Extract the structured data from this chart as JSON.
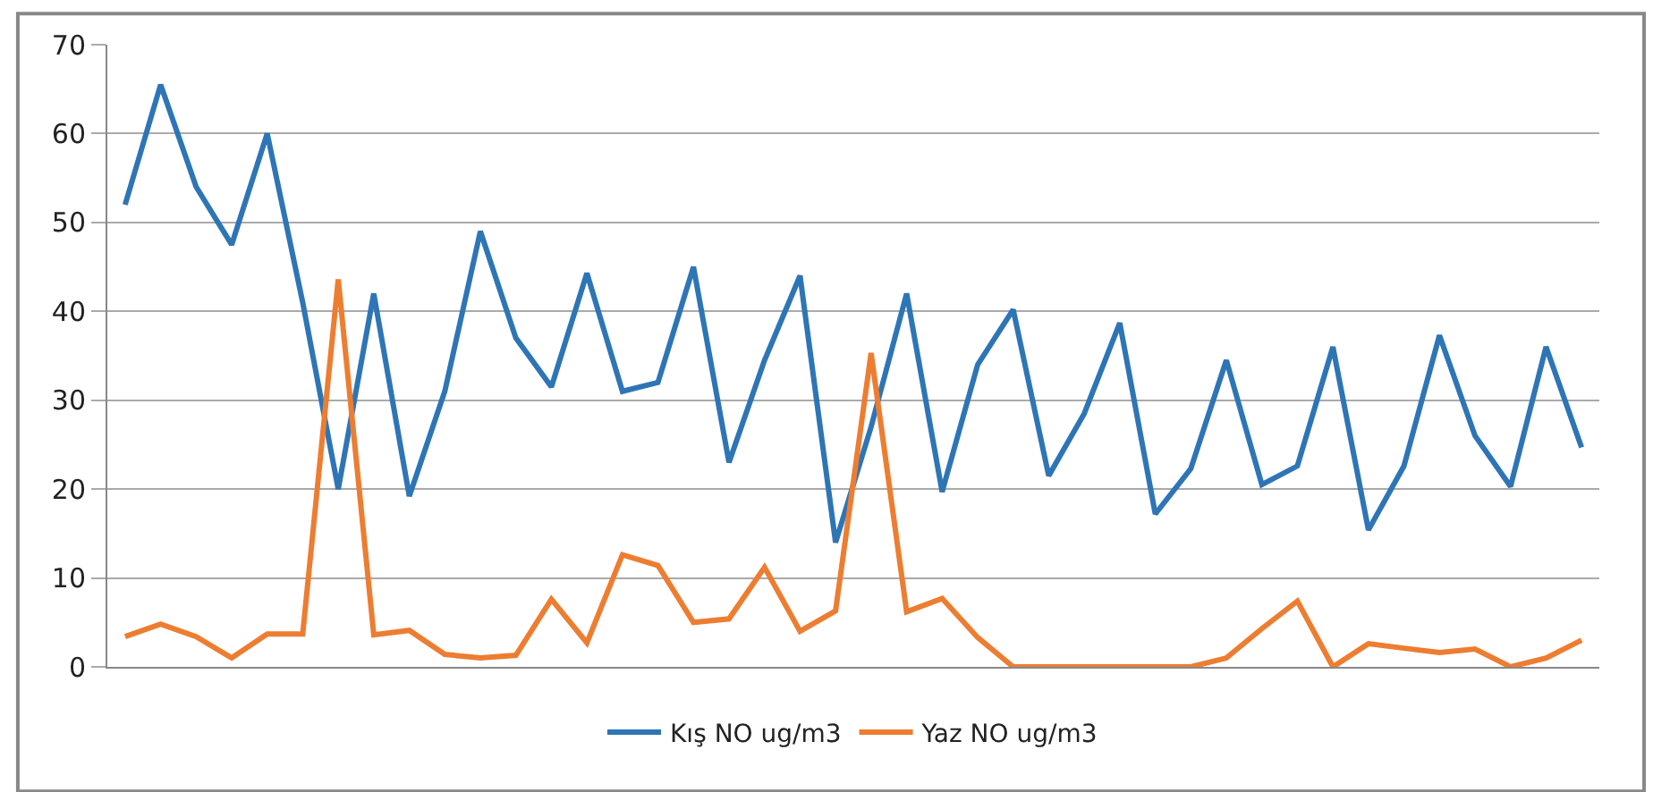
{
  "chart_data": {
    "type": "line",
    "categories": [
      null,
      null,
      null,
      null,
      null,
      null,
      null,
      null,
      null,
      null,
      null,
      null,
      null,
      null,
      null,
      null,
      null,
      null,
      null,
      null,
      null,
      null,
      null,
      null,
      null,
      null,
      null,
      null,
      null,
      null,
      null,
      null,
      null,
      null,
      null,
      null,
      null,
      null,
      null,
      null,
      null,
      null
    ],
    "series": [
      {
        "name": "Kış NO ug/m3",
        "color": "#2e75b6",
        "values": [
          52,
          65.5,
          54,
          47.5,
          60,
          41,
          20,
          42,
          19.2,
          31,
          49,
          37,
          31.5,
          44.3,
          31,
          32,
          45,
          23,
          34.5,
          44,
          14,
          27,
          42,
          19.7,
          34,
          40.2,
          21.5,
          28.5,
          38.7,
          17.2,
          22.3,
          34.5,
          20.5,
          22.6,
          36,
          15.4,
          22.6,
          37.3,
          26,
          20.3,
          36,
          24.7
        ]
      },
      {
        "name": "Yaz NO ug/m3",
        "color": "#ed7d31",
        "values": [
          3.4,
          4.8,
          3.4,
          1,
          3.7,
          3.7,
          43.6,
          3.6,
          4.1,
          1.4,
          1,
          1.3,
          7.6,
          2.7,
          12.6,
          11.4,
          5,
          5.4,
          11.2,
          4,
          6.3,
          35.3,
          6.2,
          7.7,
          3.3,
          0,
          0,
          0,
          0,
          0,
          0,
          1,
          4.3,
          7.4,
          0,
          2.6,
          2.1,
          1.6,
          2,
          0,
          1,
          3
        ]
      }
    ],
    "ylim": [
      0,
      70
    ],
    "yticks": [
      0,
      10,
      20,
      30,
      40,
      50,
      60,
      70
    ],
    "grid": "y",
    "legend": "bottom",
    "marker": "none",
    "line_style": "solid"
  }
}
